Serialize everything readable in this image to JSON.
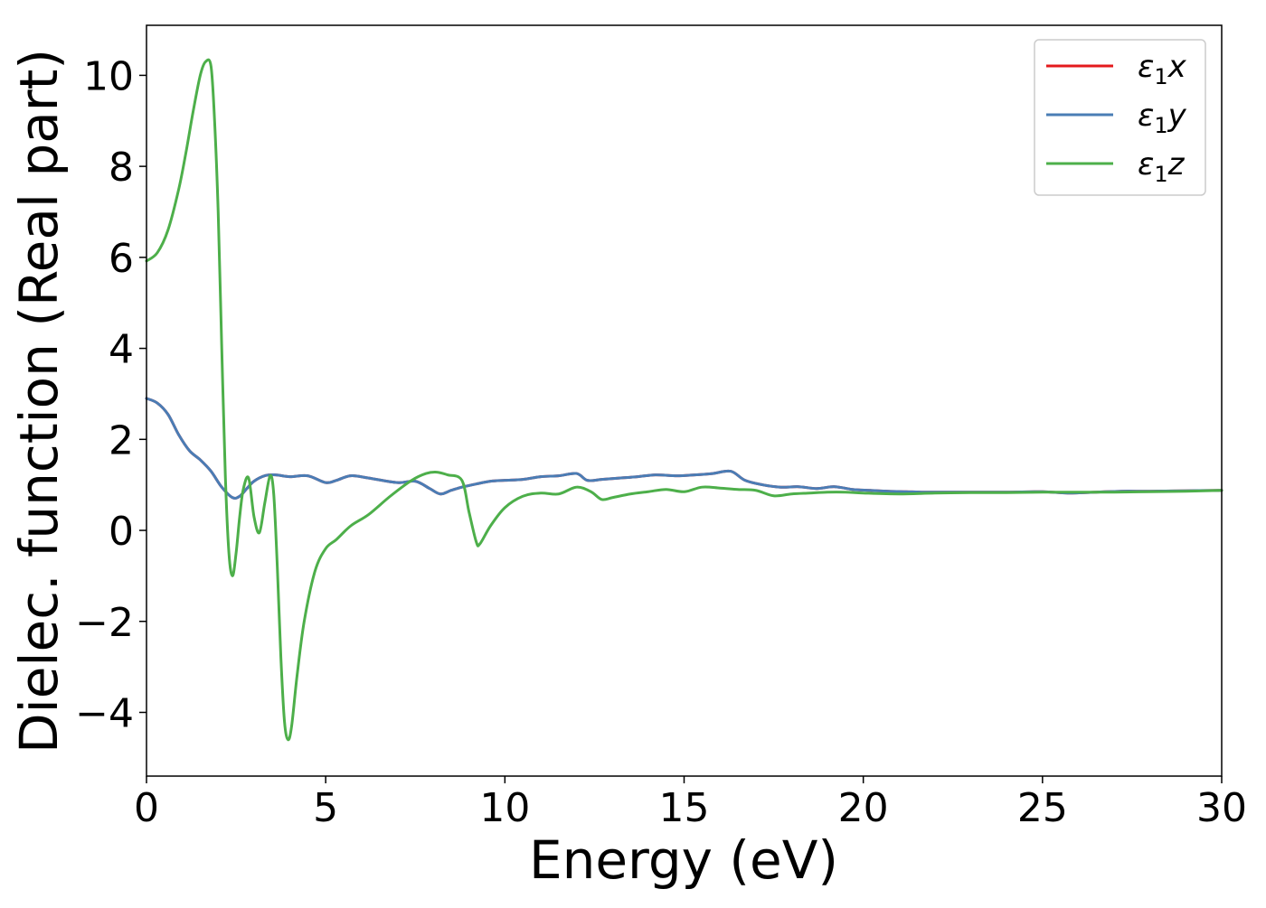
{
  "chart_data": {
    "type": "line",
    "title": "",
    "xlabel": "Energy (eV)",
    "ylabel": "Dielec. function (Real part)",
    "xlim": [
      0,
      30
    ],
    "ylim": [
      -5.4,
      11.1
    ],
    "xticks": [
      0,
      5,
      10,
      15,
      20,
      25,
      30
    ],
    "xtick_labels": [
      "0",
      "5",
      "10",
      "15",
      "20",
      "25",
      "30"
    ],
    "yticks": [
      -4,
      -2,
      0,
      2,
      4,
      6,
      8,
      10
    ],
    "ytick_labels": [
      "−4",
      "−2",
      "0",
      "2",
      "4",
      "6",
      "8",
      "10"
    ],
    "grid": false,
    "legend": {
      "position": "top-right",
      "entries": [
        "ε1x",
        "ε1y",
        "ε1z"
      ]
    },
    "series": [
      {
        "name": "ε1x",
        "legend_main": "ε",
        "legend_sub": "1",
        "legend_var": "x",
        "color": "#e41a1c",
        "x": [
          0,
          0.3,
          0.6,
          0.9,
          1.2,
          1.5,
          1.8,
          2.1,
          2.4,
          2.6,
          2.8,
          3.0,
          3.3,
          3.6,
          4.0,
          4.5,
          5.0,
          5.3,
          5.7,
          6.2,
          7.0,
          7.5,
          7.9,
          8.2,
          8.5,
          8.8,
          9.2,
          9.6,
          10.0,
          10.5,
          11.0,
          11.5,
          12.0,
          12.3,
          12.7,
          13.2,
          13.7,
          14.2,
          14.8,
          15.3,
          15.8,
          16.3,
          16.7,
          17.2,
          17.7,
          18.2,
          18.7,
          19.2,
          19.7,
          20.2,
          20.7,
          21.2,
          21.7,
          22.2,
          23.0,
          24.0,
          25.0,
          25.7,
          26.5,
          27.2,
          28.0,
          29.0,
          30.0
        ],
        "y": [
          2.9,
          2.8,
          2.55,
          2.1,
          1.75,
          1.55,
          1.3,
          0.95,
          0.72,
          0.75,
          0.92,
          1.08,
          1.2,
          1.22,
          1.18,
          1.2,
          1.05,
          1.1,
          1.2,
          1.15,
          1.05,
          1.08,
          0.92,
          0.8,
          0.88,
          0.95,
          1.02,
          1.08,
          1.1,
          1.12,
          1.18,
          1.2,
          1.25,
          1.1,
          1.12,
          1.15,
          1.18,
          1.22,
          1.2,
          1.22,
          1.25,
          1.3,
          1.1,
          1.0,
          0.95,
          0.96,
          0.92,
          0.96,
          0.9,
          0.88,
          0.86,
          0.85,
          0.84,
          0.84,
          0.84,
          0.84,
          0.85,
          0.82,
          0.84,
          0.86,
          0.86,
          0.87,
          0.88
        ]
      },
      {
        "name": "ε1y",
        "legend_main": "ε",
        "legend_sub": "1",
        "legend_var": "y",
        "color": "#4a7db5",
        "x": [
          0,
          0.3,
          0.6,
          0.9,
          1.2,
          1.5,
          1.8,
          2.1,
          2.4,
          2.6,
          2.8,
          3.0,
          3.3,
          3.6,
          4.0,
          4.5,
          5.0,
          5.3,
          5.7,
          6.2,
          7.0,
          7.5,
          7.9,
          8.2,
          8.5,
          8.8,
          9.2,
          9.6,
          10.0,
          10.5,
          11.0,
          11.5,
          12.0,
          12.3,
          12.7,
          13.2,
          13.7,
          14.2,
          14.8,
          15.3,
          15.8,
          16.3,
          16.7,
          17.2,
          17.7,
          18.2,
          18.7,
          19.2,
          19.7,
          20.2,
          20.7,
          21.2,
          21.7,
          22.2,
          23.0,
          24.0,
          25.0,
          25.7,
          26.5,
          27.2,
          28.0,
          29.0,
          30.0
        ],
        "y": [
          2.9,
          2.8,
          2.55,
          2.1,
          1.75,
          1.55,
          1.3,
          0.95,
          0.72,
          0.75,
          0.92,
          1.08,
          1.2,
          1.22,
          1.18,
          1.2,
          1.05,
          1.1,
          1.2,
          1.15,
          1.05,
          1.08,
          0.92,
          0.8,
          0.88,
          0.95,
          1.02,
          1.08,
          1.1,
          1.12,
          1.18,
          1.2,
          1.25,
          1.1,
          1.12,
          1.15,
          1.18,
          1.22,
          1.2,
          1.22,
          1.25,
          1.3,
          1.1,
          1.0,
          0.95,
          0.96,
          0.92,
          0.96,
          0.9,
          0.88,
          0.86,
          0.85,
          0.84,
          0.84,
          0.84,
          0.84,
          0.85,
          0.82,
          0.84,
          0.86,
          0.86,
          0.87,
          0.88
        ]
      },
      {
        "name": "ε1z",
        "legend_main": "ε",
        "legend_sub": "1",
        "legend_var": "z",
        "color": "#4daf4a",
        "x": [
          0,
          0.3,
          0.6,
          0.9,
          1.1,
          1.3,
          1.5,
          1.65,
          1.8,
          1.9,
          2.0,
          2.1,
          2.2,
          2.3,
          2.4,
          2.5,
          2.6,
          2.7,
          2.85,
          3.0,
          3.15,
          3.3,
          3.45,
          3.55,
          3.65,
          3.75,
          3.85,
          3.95,
          4.05,
          4.2,
          4.4,
          4.7,
          5.0,
          5.3,
          5.7,
          6.2,
          6.8,
          7.4,
          7.8,
          8.1,
          8.4,
          8.8,
          9.0,
          9.2,
          9.3,
          9.6,
          10.0,
          10.5,
          11.0,
          11.5,
          12.0,
          12.4,
          12.7,
          13.0,
          13.5,
          14.0,
          14.5,
          15.0,
          15.5,
          16.0,
          16.5,
          17.0,
          17.5,
          18.0,
          18.5,
          19.0,
          19.5,
          20.0,
          21.0,
          22.0,
          23.0,
          24.0,
          25.0,
          26.0,
          27.0,
          28.0,
          29.0,
          30.0
        ],
        "y": [
          5.92,
          6.1,
          6.6,
          7.5,
          8.3,
          9.2,
          10.0,
          10.3,
          10.2,
          9.0,
          7.0,
          4.0,
          1.2,
          -0.5,
          -1.0,
          -0.5,
          0.3,
          0.9,
          1.15,
          0.3,
          -0.05,
          0.6,
          1.2,
          0.8,
          -0.8,
          -2.8,
          -4.2,
          -4.6,
          -4.3,
          -3.2,
          -2.0,
          -0.9,
          -0.4,
          -0.2,
          0.1,
          0.35,
          0.75,
          1.1,
          1.25,
          1.28,
          1.22,
          1.1,
          0.4,
          -0.25,
          -0.3,
          0.1,
          0.5,
          0.75,
          0.82,
          0.8,
          0.95,
          0.85,
          0.68,
          0.72,
          0.8,
          0.85,
          0.9,
          0.85,
          0.95,
          0.93,
          0.9,
          0.88,
          0.76,
          0.8,
          0.82,
          0.84,
          0.84,
          0.82,
          0.8,
          0.82,
          0.83,
          0.83,
          0.84,
          0.84,
          0.84,
          0.85,
          0.86,
          0.88
        ]
      }
    ]
  }
}
